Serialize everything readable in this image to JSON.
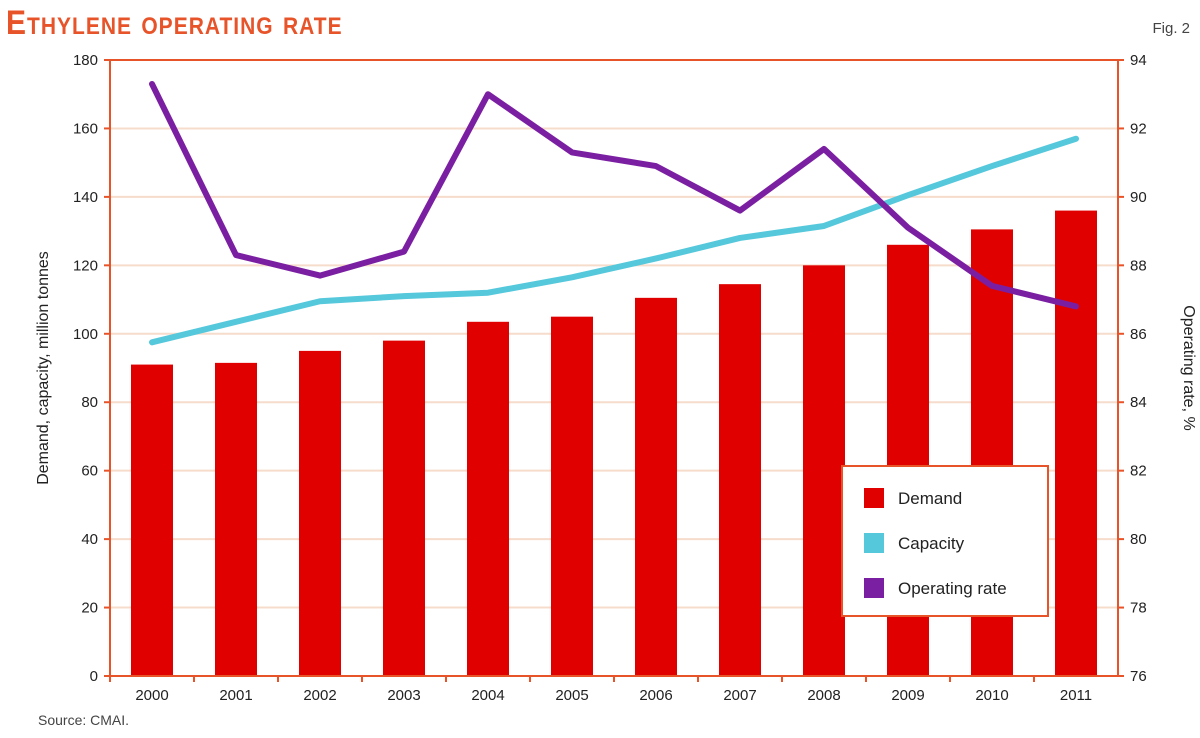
{
  "header": {
    "title": "Ethylene operating rate",
    "fig": "Fig. 2"
  },
  "footer": {
    "source": "Source: CMAI."
  },
  "colors": {
    "accent": "#e8542a",
    "demand": "#e00000",
    "capacity": "#55c8dc",
    "rate": "#7b1fa2",
    "grid": "#f6dccb"
  },
  "chart_data": {
    "type": "bar",
    "categories": [
      "2000",
      "2001",
      "2002",
      "2003",
      "2004",
      "2005",
      "2006",
      "2007",
      "2008",
      "2009",
      "2010",
      "2011"
    ],
    "series": [
      {
        "name": "Demand",
        "type": "bar",
        "axis": "left",
        "values": [
          91,
          91.5,
          95,
          98,
          103.5,
          105,
          110.5,
          114.5,
          120,
          126,
          130.5,
          136
        ]
      },
      {
        "name": "Capacity",
        "type": "line",
        "axis": "left",
        "values": [
          97.5,
          103.5,
          109.5,
          111,
          112,
          116.5,
          122,
          128,
          131.5,
          140.5,
          149,
          157
        ]
      },
      {
        "name": "Operating rate",
        "type": "line",
        "axis": "right",
        "values": [
          93.3,
          88.3,
          87.7,
          88.4,
          93.0,
          91.3,
          90.9,
          89.6,
          91.4,
          89.1,
          87.4,
          86.8
        ]
      }
    ],
    "ylabel": "Demand, capacity, million tonnes",
    "ylabel_right": "Operating rate, %",
    "ylim": [
      0,
      180
    ],
    "ylim_right": [
      76,
      94
    ],
    "yticks": [
      0,
      20,
      40,
      60,
      80,
      100,
      120,
      140,
      160,
      180
    ],
    "yticks_right": [
      76,
      78,
      80,
      82,
      84,
      86,
      88,
      90,
      92,
      94
    ],
    "grid": true,
    "legend_position": "lower-right"
  }
}
